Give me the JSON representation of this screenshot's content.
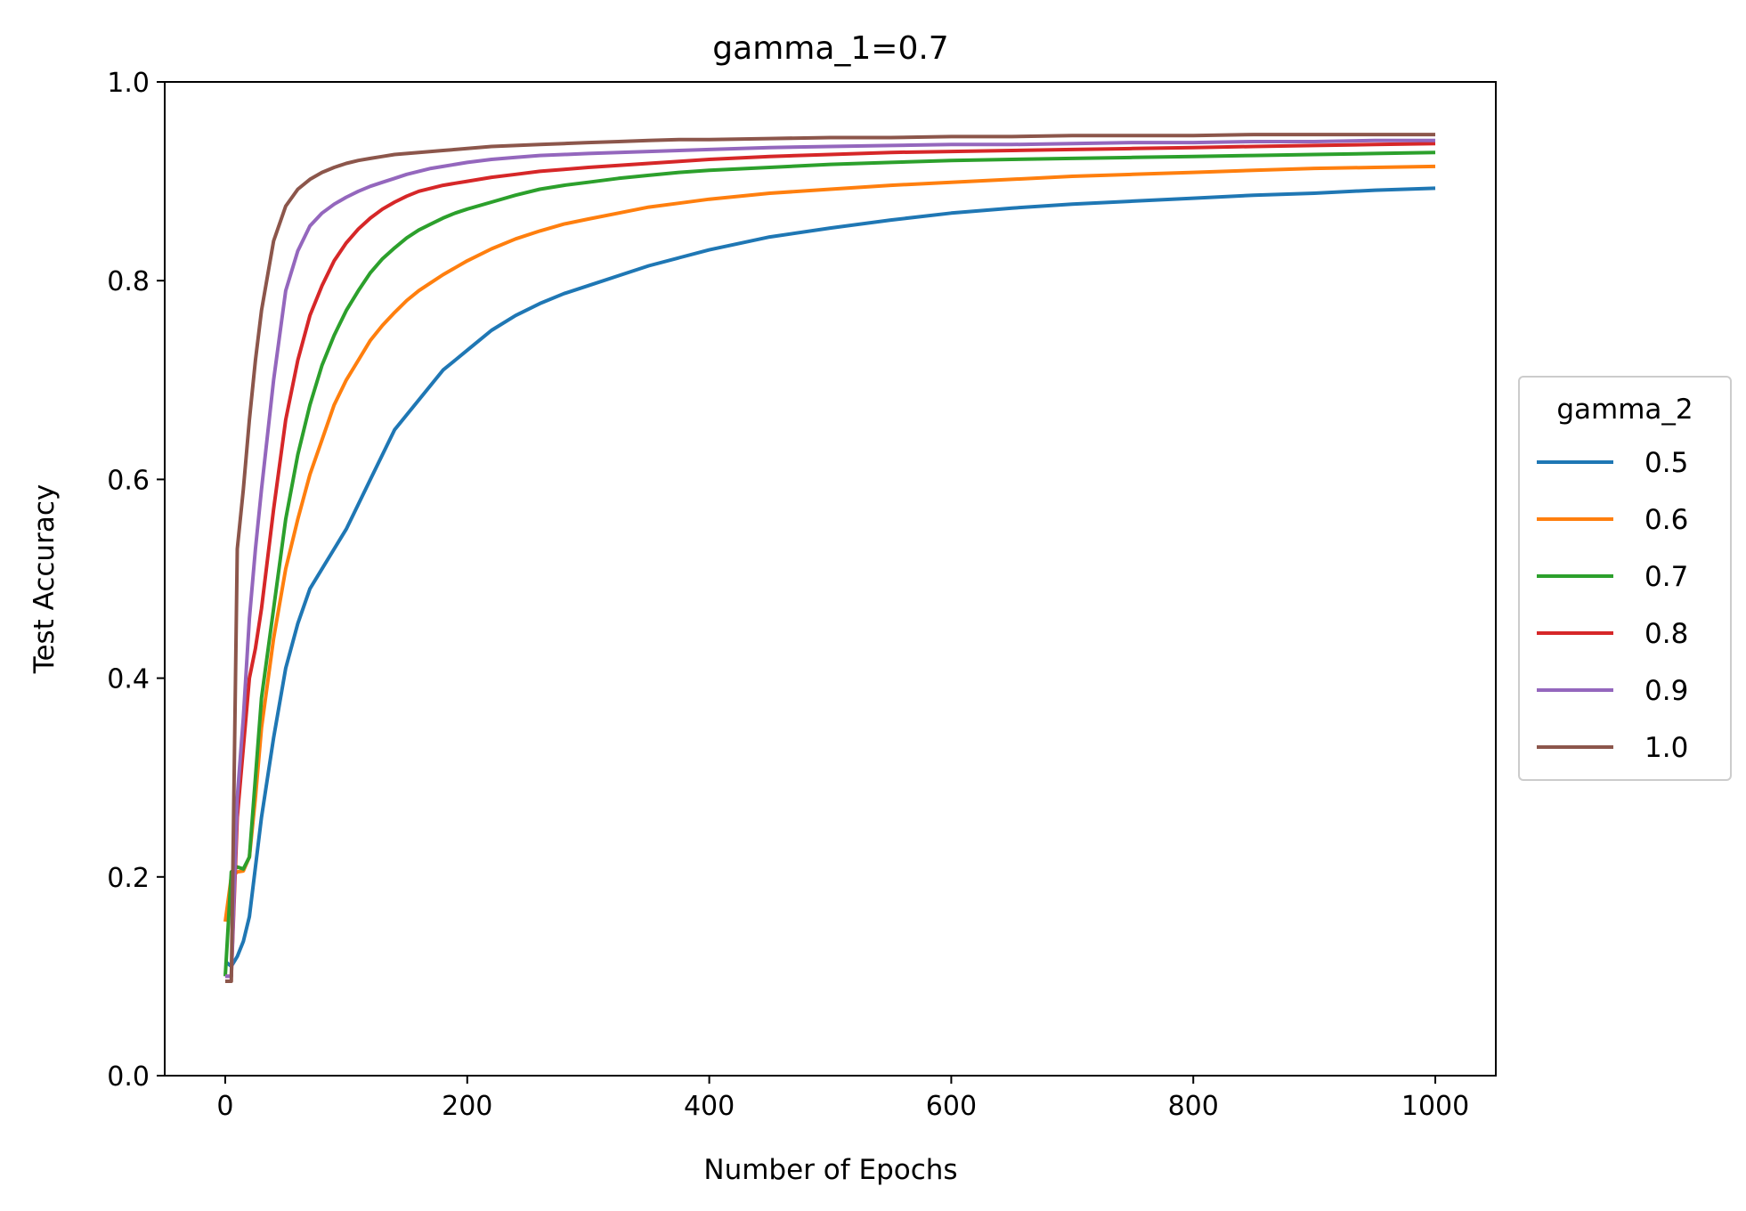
{
  "chart_data": {
    "type": "line",
    "title": "gamma_1=0.7",
    "xlabel": "Number of Epochs",
    "ylabel": "Test Accuracy",
    "xlim": [
      -50,
      1050
    ],
    "ylim": [
      0.0,
      1.0
    ],
    "xticks": [
      "0",
      "200",
      "400",
      "600",
      "800",
      "1000"
    ],
    "yticks": [
      "0.0",
      "0.2",
      "0.4",
      "0.6",
      "0.8",
      "1.0"
    ],
    "grid": false,
    "legend": {
      "title": "gamma_2",
      "placement": "right-outside"
    },
    "series": [
      {
        "name": "0.5",
        "color": "#1f77b4",
        "x": [
          0,
          5,
          10,
          15,
          20,
          25,
          30,
          40,
          50,
          60,
          70,
          80,
          90,
          100,
          110,
          120,
          130,
          140,
          150,
          160,
          170,
          180,
          190,
          200,
          220,
          240,
          260,
          280,
          300,
          325,
          350,
          375,
          400,
          450,
          500,
          550,
          600,
          650,
          700,
          750,
          800,
          850,
          900,
          950,
          1000
        ],
        "y": [
          0.115,
          0.11,
          0.12,
          0.135,
          0.16,
          0.21,
          0.26,
          0.34,
          0.41,
          0.455,
          0.49,
          0.51,
          0.53,
          0.55,
          0.575,
          0.6,
          0.625,
          0.65,
          0.665,
          0.68,
          0.695,
          0.71,
          0.72,
          0.73,
          0.75,
          0.765,
          0.777,
          0.787,
          0.795,
          0.805,
          0.815,
          0.823,
          0.831,
          0.844,
          0.853,
          0.861,
          0.868,
          0.873,
          0.877,
          0.88,
          0.883,
          0.886,
          0.888,
          0.891,
          0.893
        ]
      },
      {
        "name": "0.6",
        "color": "#ff7f0e",
        "x": [
          0,
          5,
          10,
          15,
          20,
          25,
          30,
          40,
          50,
          60,
          70,
          80,
          90,
          100,
          110,
          120,
          130,
          140,
          150,
          160,
          170,
          180,
          190,
          200,
          220,
          240,
          260,
          280,
          300,
          325,
          350,
          375,
          400,
          450,
          500,
          550,
          600,
          650,
          700,
          750,
          800,
          850,
          900,
          950,
          1000
        ],
        "y": [
          0.155,
          0.2,
          0.205,
          0.206,
          0.22,
          0.28,
          0.35,
          0.44,
          0.51,
          0.56,
          0.605,
          0.64,
          0.675,
          0.7,
          0.72,
          0.74,
          0.755,
          0.768,
          0.78,
          0.79,
          0.798,
          0.806,
          0.813,
          0.82,
          0.832,
          0.842,
          0.85,
          0.857,
          0.862,
          0.868,
          0.874,
          0.878,
          0.882,
          0.888,
          0.892,
          0.896,
          0.899,
          0.902,
          0.905,
          0.907,
          0.909,
          0.911,
          0.913,
          0.914,
          0.915
        ]
      },
      {
        "name": "0.7",
        "color": "#2ca02c",
        "x": [
          0,
          5,
          10,
          15,
          20,
          25,
          30,
          40,
          50,
          60,
          70,
          80,
          90,
          100,
          110,
          120,
          130,
          140,
          150,
          160,
          170,
          180,
          190,
          200,
          220,
          240,
          260,
          280,
          300,
          325,
          350,
          375,
          400,
          450,
          500,
          550,
          600,
          650,
          700,
          750,
          800,
          850,
          900,
          950,
          1000
        ],
        "y": [
          0.1,
          0.205,
          0.21,
          0.208,
          0.22,
          0.3,
          0.38,
          0.47,
          0.56,
          0.625,
          0.675,
          0.715,
          0.745,
          0.77,
          0.79,
          0.808,
          0.822,
          0.833,
          0.843,
          0.851,
          0.857,
          0.863,
          0.868,
          0.872,
          0.879,
          0.886,
          0.892,
          0.896,
          0.899,
          0.903,
          0.906,
          0.909,
          0.911,
          0.914,
          0.917,
          0.919,
          0.921,
          0.922,
          0.923,
          0.924,
          0.925,
          0.926,
          0.927,
          0.928,
          0.929
        ]
      },
      {
        "name": "0.8",
        "color": "#d62728",
        "x": [
          0,
          5,
          10,
          15,
          20,
          25,
          30,
          40,
          50,
          60,
          70,
          80,
          90,
          100,
          110,
          120,
          130,
          140,
          150,
          160,
          170,
          180,
          190,
          200,
          220,
          240,
          260,
          280,
          300,
          325,
          350,
          375,
          400,
          450,
          500,
          550,
          600,
          650,
          700,
          750,
          800,
          850,
          900,
          950,
          1000
        ],
        "y": [
          0.1,
          0.1,
          0.26,
          0.33,
          0.4,
          0.43,
          0.47,
          0.57,
          0.66,
          0.72,
          0.765,
          0.795,
          0.82,
          0.838,
          0.852,
          0.863,
          0.872,
          0.879,
          0.885,
          0.89,
          0.893,
          0.896,
          0.898,
          0.9,
          0.904,
          0.907,
          0.91,
          0.912,
          0.914,
          0.916,
          0.918,
          0.92,
          0.922,
          0.925,
          0.927,
          0.929,
          0.93,
          0.931,
          0.932,
          0.933,
          0.934,
          0.935,
          0.936,
          0.937,
          0.938
        ]
      },
      {
        "name": "0.9",
        "color": "#9467bd",
        "x": [
          0,
          5,
          10,
          15,
          20,
          25,
          30,
          40,
          50,
          60,
          70,
          80,
          90,
          100,
          110,
          120,
          130,
          140,
          150,
          160,
          170,
          180,
          190,
          200,
          220,
          240,
          260,
          280,
          300,
          325,
          350,
          375,
          400,
          450,
          500,
          550,
          600,
          650,
          700,
          750,
          800,
          850,
          900,
          950,
          1000
        ],
        "y": [
          0.1,
          0.1,
          0.28,
          0.36,
          0.46,
          0.53,
          0.59,
          0.7,
          0.79,
          0.83,
          0.855,
          0.868,
          0.877,
          0.884,
          0.89,
          0.895,
          0.899,
          0.903,
          0.907,
          0.91,
          0.913,
          0.915,
          0.917,
          0.919,
          0.922,
          0.924,
          0.926,
          0.927,
          0.928,
          0.929,
          0.93,
          0.931,
          0.932,
          0.934,
          0.935,
          0.936,
          0.937,
          0.937,
          0.938,
          0.939,
          0.939,
          0.94,
          0.94,
          0.941,
          0.941
        ]
      },
      {
        "name": "1.0",
        "color": "#8c564b",
        "x": [
          0,
          5,
          10,
          15,
          20,
          25,
          30,
          40,
          50,
          60,
          70,
          80,
          90,
          100,
          110,
          120,
          130,
          140,
          150,
          160,
          170,
          180,
          190,
          200,
          220,
          240,
          260,
          280,
          300,
          325,
          350,
          375,
          400,
          450,
          500,
          550,
          600,
          650,
          700,
          750,
          800,
          850,
          900,
          950,
          1000
        ],
        "y": [
          0.095,
          0.095,
          0.53,
          0.59,
          0.66,
          0.72,
          0.77,
          0.84,
          0.875,
          0.892,
          0.902,
          0.909,
          0.914,
          0.918,
          0.921,
          0.923,
          0.925,
          0.927,
          0.928,
          0.929,
          0.93,
          0.931,
          0.932,
          0.933,
          0.935,
          0.936,
          0.937,
          0.938,
          0.939,
          0.94,
          0.941,
          0.942,
          0.942,
          0.943,
          0.944,
          0.944,
          0.945,
          0.945,
          0.946,
          0.946,
          0.946,
          0.947,
          0.947,
          0.947,
          0.947
        ]
      }
    ]
  }
}
